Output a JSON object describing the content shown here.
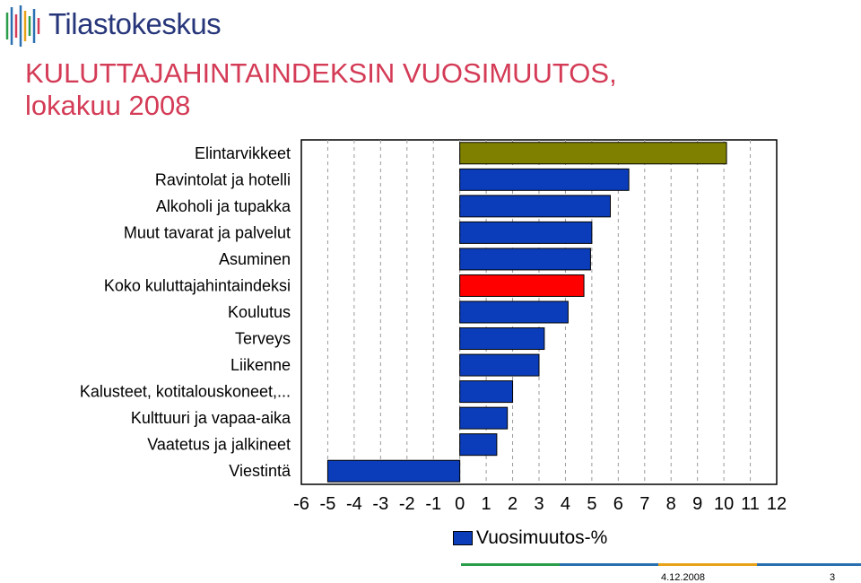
{
  "header": {
    "logo_text": "Tilastokeskus",
    "title_line1": "KULUTTAJAHINTAINDEKSIN VUOSIMUUTOS,",
    "title_line2": "lokakuu 2008"
  },
  "footer": {
    "date": "4.12.2008",
    "page": "3"
  },
  "chart_data": {
    "type": "bar",
    "orientation": "horizontal",
    "categories": [
      "Elintarvikkeet",
      "Ravintolat ja hotelli",
      "Alkoholi ja tupakka",
      "Muut tavarat ja palvelut",
      "Asuminen",
      "Koko kuluttajahintaindeksi",
      "Koulutus",
      "Terveys",
      "Liikenne",
      "Kalusteet, kotitalouskoneet,...",
      "Kulttuuri ja vapaa-aika",
      "Vaatetus ja jalkineet",
      "Viestintä"
    ],
    "series": [
      {
        "name": "Vuosimuutos-%",
        "values": [
          10.1,
          6.4,
          5.7,
          5.0,
          4.95,
          4.7,
          4.1,
          3.2,
          3.0,
          2.0,
          1.8,
          1.4,
          -5.0
        ]
      }
    ],
    "colors": [
      "#808000",
      "#0b3dba",
      "#0b3dba",
      "#0b3dba",
      "#0b3dba",
      "#ff0000",
      "#0b3dba",
      "#0b3dba",
      "#0b3dba",
      "#0b3dba",
      "#0b3dba",
      "#0b3dba",
      "#0b3dba"
    ],
    "xlim": [
      -6,
      12
    ],
    "xticks": [
      "-6",
      "-5",
      "-4",
      "-3",
      "-2",
      "-1",
      "0",
      "1",
      "2",
      "3",
      "4",
      "5",
      "6",
      "7",
      "8",
      "9",
      "10",
      "11",
      "12"
    ],
    "grid": "vertical dashed",
    "legend_position": "bottom"
  }
}
